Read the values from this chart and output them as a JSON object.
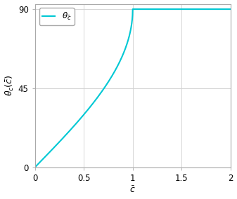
{
  "line_color": "#00c8d4",
  "line_width": 1.5,
  "xlim": [
    0,
    2
  ],
  "ylim": [
    0,
    93
  ],
  "ylim_display": [
    0,
    90
  ],
  "xticks": [
    0,
    0.5,
    1.0,
    1.5,
    2.0
  ],
  "yticks": [
    0,
    45,
    90
  ],
  "xlabel": "$\\bar{c}$",
  "ylabel": "$\\theta_c(\\bar{c})$",
  "legend_label": "$\\theta_{\\bar{c}}$",
  "grid_color": "#d0d0d0",
  "background_color": "#ffffff",
  "plot_bg_color": "#ffffff",
  "spine_color": "#aaaaaa",
  "title": "",
  "figsize": [
    3.37,
    2.84
  ],
  "dpi": 100
}
